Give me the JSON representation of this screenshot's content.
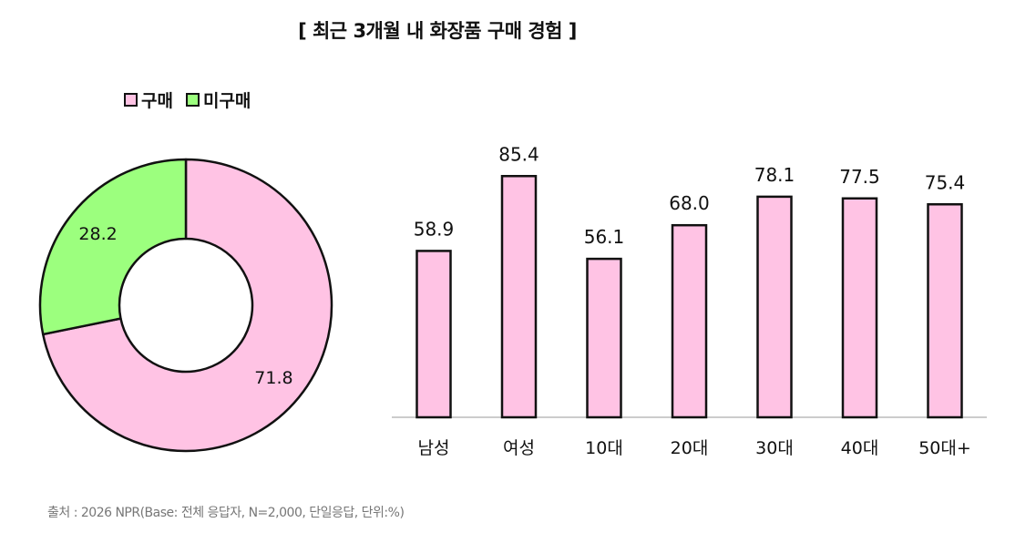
{
  "title": "[ 최근 3개월 내 화장품 구매 경험 ]",
  "source": "출처 : 2026 NPR(Base: 전체 응답자, N=2,000, 단일응답, 단위:%)",
  "colors": {
    "purchase": "#ffc3e4",
    "no_purchase": "#9cff7e",
    "stroke": "#111111",
    "axis": "#bbbbbb"
  },
  "chart_data": [
    {
      "type": "pie",
      "variant": "donut",
      "legend_position": "top-left",
      "slices": [
        {
          "label": "구매",
          "value": 71.8,
          "color": "#ffc3e4"
        },
        {
          "label": "미구매",
          "value": 28.2,
          "color": "#9cff7e"
        }
      ]
    },
    {
      "type": "bar",
      "categories": [
        "남성",
        "여성",
        "10대",
        "20대",
        "30대",
        "40대",
        "50대+"
      ],
      "values": [
        58.9,
        85.4,
        56.1,
        68.0,
        78.1,
        77.5,
        75.4
      ],
      "value_labels": [
        "58.9",
        "85.4",
        "56.1",
        "68.0",
        "78.1",
        "77.5",
        "75.4"
      ],
      "series": [
        {
          "name": "구매",
          "values": [
            58.9,
            85.4,
            56.1,
            68.0,
            78.1,
            77.5,
            75.4
          ]
        }
      ],
      "ylim": [
        0,
        100
      ],
      "grid": false
    }
  ]
}
